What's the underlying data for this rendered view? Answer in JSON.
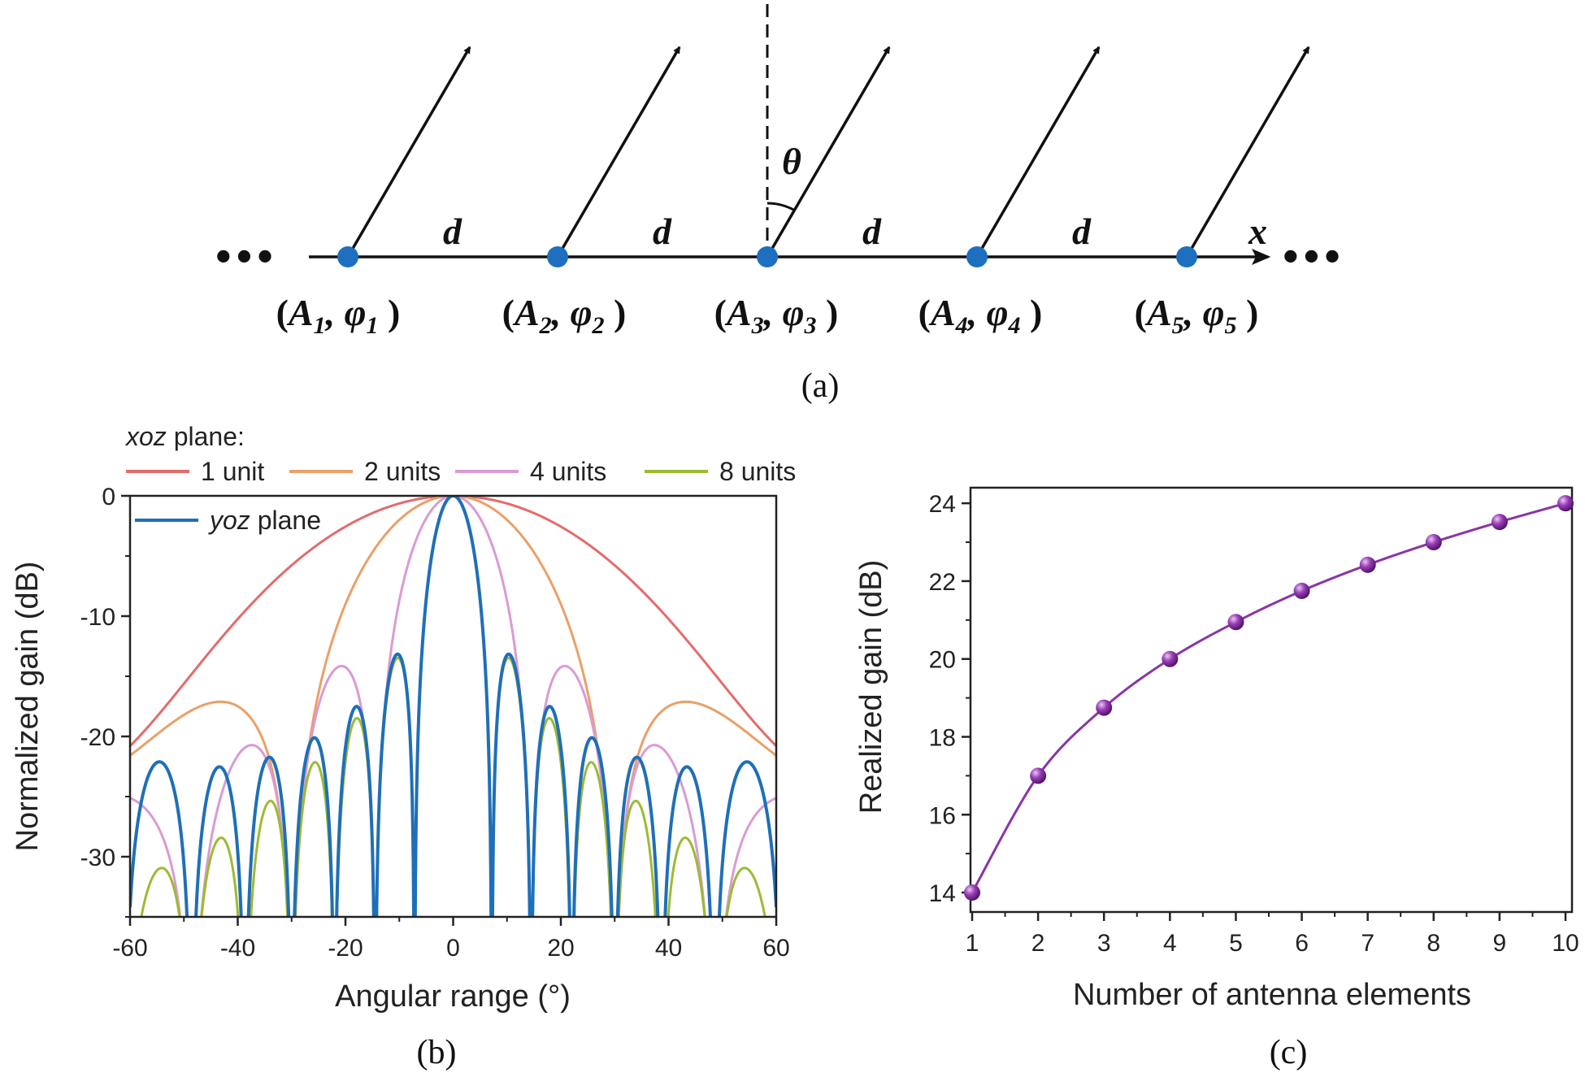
{
  "diagram": {
    "caption": "(a)",
    "spacing_label": "d",
    "angle_label": "θ",
    "axis_label": "x",
    "ellipsis": "•••",
    "elements": [
      {
        "A": "A",
        "sub": "1",
        "phi": "φ",
        "label_open": "(",
        "label_close": ")"
      },
      {
        "A": "A",
        "sub": "2",
        "phi": "φ",
        "label_open": "(",
        "label_close": ")"
      },
      {
        "A": "A",
        "sub": "3",
        "phi": "φ",
        "label_open": "(",
        "label_close": ")"
      },
      {
        "A": "A",
        "sub": "4",
        "phi": "φ",
        "label_open": "(",
        "label_close": ")"
      },
      {
        "A": "A",
        "sub": "5",
        "phi": "φ",
        "label_open": "(",
        "label_close": ")"
      }
    ],
    "colors": {
      "element": "#1e6fc0",
      "line": "#111111"
    }
  },
  "chart_data": [
    {
      "type": "line",
      "caption": "(b)",
      "xlabel": "Angular range (°)",
      "ylabel": "Normalized gain (dB)",
      "xlim": [
        -60,
        60
      ],
      "ylim": [
        -35,
        0
      ],
      "xticks": [
        -60,
        -40,
        -20,
        0,
        20,
        40,
        60
      ],
      "yticks": [
        0,
        -10,
        -20,
        -30
      ],
      "legend_header_italic": "xoz",
      "legend_header_rest": " plane:",
      "legend_inset_italic": "yoz",
      "legend_inset_rest": " plane",
      "series": [
        {
          "name": "1 unit",
          "color": "#e46b6b",
          "units": 1,
          "element": "broad"
        },
        {
          "name": "2 units",
          "color": "#eaa068",
          "units": 2,
          "element": "broad"
        },
        {
          "name": "4 units",
          "color": "#d99bd3",
          "units": 4,
          "element": "broad"
        },
        {
          "name": "8 units",
          "color": "#9cbb32",
          "units": 8,
          "element": "broad"
        },
        {
          "name": "yoz plane",
          "color": "#1f6fb8",
          "units": 8,
          "element": "narrow"
        }
      ]
    },
    {
      "type": "line",
      "caption": "(c)",
      "xlabel": "Number of antenna elements",
      "ylabel": "Realized gain (dB)",
      "xlim": [
        1,
        10
      ],
      "ylim": [
        13.5,
        24.4
      ],
      "xticks": [
        1,
        2,
        3,
        4,
        5,
        6,
        7,
        8,
        9,
        10
      ],
      "yticks": [
        14,
        16,
        18,
        20,
        22,
        24
      ],
      "color": "#8a35a6",
      "x": [
        1,
        2,
        3,
        4,
        5,
        6,
        7,
        8,
        9,
        10
      ],
      "y": [
        14.0,
        17.0,
        18.75,
        20.0,
        20.95,
        21.75,
        22.42,
        23.0,
        23.52,
        24.0
      ]
    }
  ]
}
